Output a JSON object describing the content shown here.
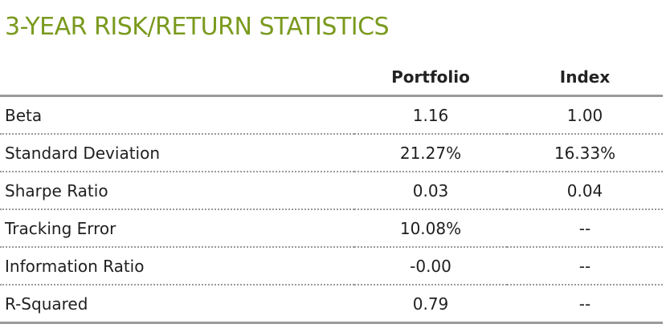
{
  "title": "3-YEAR RISK/RETURN STATISTICS",
  "colors": {
    "title": "#7a9a1e",
    "rule": "#9a9a9a",
    "text": "#1f1f1f"
  },
  "table": {
    "headers": {
      "metric": "",
      "portfolio": "Portfolio",
      "index": "Index"
    },
    "rows": [
      {
        "metric": "Beta",
        "portfolio": "1.16",
        "index": "1.00"
      },
      {
        "metric": "Standard Deviation",
        "portfolio": "21.27%",
        "index": "16.33%"
      },
      {
        "metric": "Sharpe Ratio",
        "portfolio": "0.03",
        "index": "0.04"
      },
      {
        "metric": "Tracking Error",
        "portfolio": "10.08%",
        "index": "--"
      },
      {
        "metric": "Information Ratio",
        "portfolio": "-0.00",
        "index": "--"
      },
      {
        "metric": "R-Squared",
        "portfolio": "0.79",
        "index": "--"
      }
    ]
  }
}
